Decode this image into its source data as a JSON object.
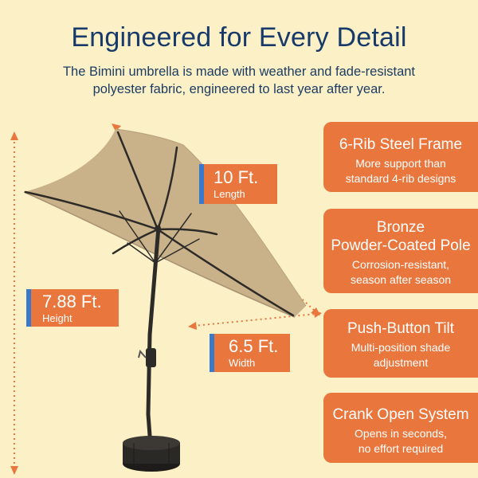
{
  "heading": "Engineered for Every Detail",
  "subheading_line1": "The Bimini umbrella is made with weather and fade-resistant",
  "subheading_line2": "polyester fabric, engineered to last year after year.",
  "dimensions": {
    "length": {
      "value": "10 Ft.",
      "label": "Length"
    },
    "height": {
      "value": "7.88 Ft.",
      "label": "Height"
    },
    "width": {
      "value": "6.5 Ft.",
      "label": "Width"
    }
  },
  "features": [
    {
      "title": "6-Rib Steel Frame",
      "desc_line1": "More support than",
      "desc_line2": "standard 4-rib designs"
    },
    {
      "title_line1": "Bronze",
      "title_line2": "Powder-Coated Pole",
      "desc_line1": "Corrosion-resistant,",
      "desc_line2": "season after season"
    },
    {
      "title": "Push-Button Tilt",
      "desc_line1": "Multi-position shade",
      "desc_line2": "adjustment"
    },
    {
      "title": "Crank Open System",
      "desc_line1": "Opens in seconds,",
      "desc_line2": "no effort required"
    }
  ],
  "colors": {
    "background": "#fbf0c6",
    "heading": "#173a6b",
    "accent_orange": "#e9773d",
    "accent_blue": "#3a78c9",
    "canopy": "#c9b28a",
    "frame": "#2d2b28"
  }
}
